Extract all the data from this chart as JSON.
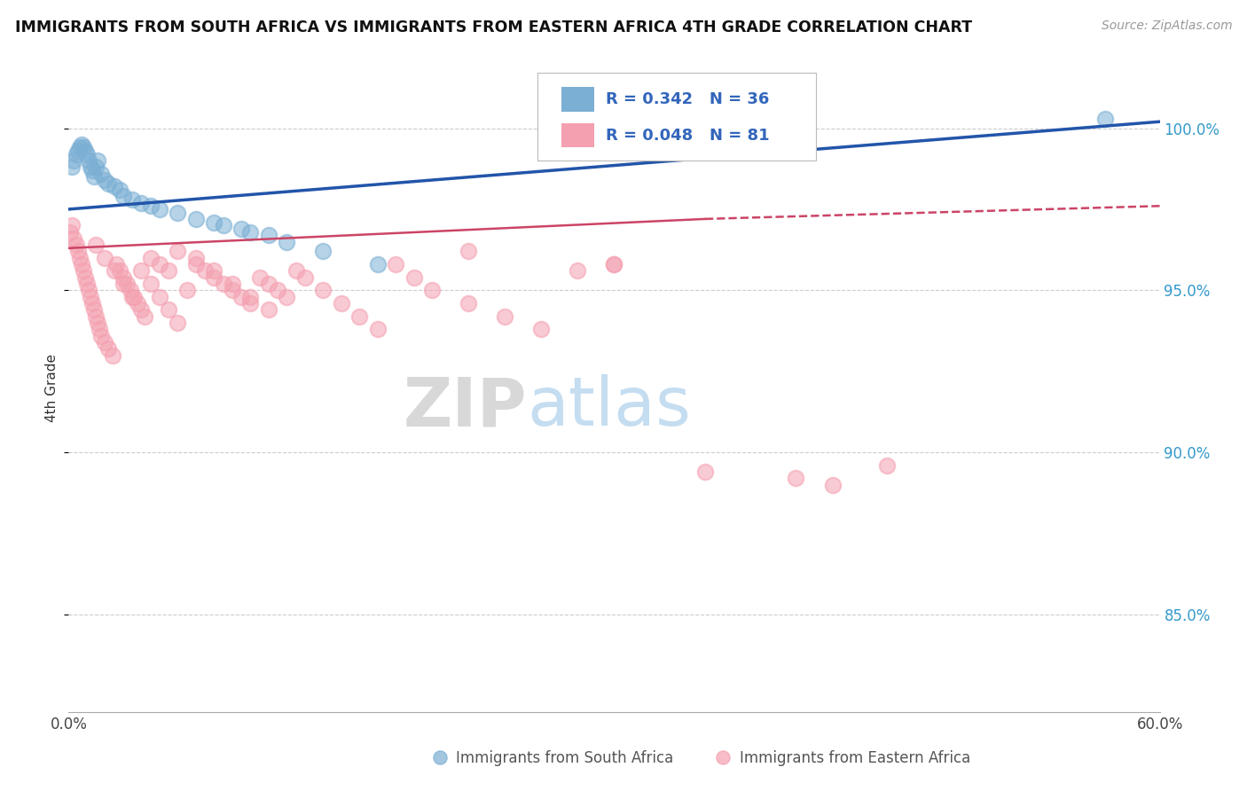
{
  "title": "IMMIGRANTS FROM SOUTH AFRICA VS IMMIGRANTS FROM EASTERN AFRICA 4TH GRADE CORRELATION CHART",
  "source": "Source: ZipAtlas.com",
  "ylabel": "4th Grade",
  "xlim": [
    0.0,
    60.0
  ],
  "ylim": [
    82.0,
    102.0
  ],
  "yticks_right": [
    85.0,
    90.0,
    95.0,
    100.0
  ],
  "ytick_labels_right": [
    "85.0%",
    "90.0%",
    "95.0%",
    "100.0%"
  ],
  "grid_color": "#cccccc",
  "background_color": "#ffffff",
  "blue_color": "#7bafd4",
  "pink_color": "#f4a0b0",
  "blue_line_color": "#2255aa",
  "pink_line_color": "#cc4466",
  "blue_R": 0.342,
  "blue_N": 36,
  "pink_R": 0.048,
  "pink_N": 81,
  "legend_R_color": "#3366bb",
  "watermark_zip": "ZIP",
  "watermark_atlas": "atlas",
  "legend_label_blue": "Immigrants from South Africa",
  "legend_label_pink": "Immigrants from Eastern Africa",
  "blue_scatter_x": [
    0.2,
    0.3,
    0.4,
    0.5,
    0.6,
    0.7,
    0.8,
    0.9,
    1.0,
    1.1,
    1.2,
    1.3,
    1.4,
    1.5,
    1.6,
    1.8,
    2.0,
    2.2,
    2.5,
    2.8,
    3.0,
    3.5,
    4.0,
    4.5,
    5.0,
    6.0,
    7.0,
    8.5,
    10.0,
    12.0,
    14.0,
    17.0,
    8.0,
    9.5,
    11.0,
    57.0
  ],
  "blue_scatter_y": [
    98.8,
    99.0,
    99.2,
    99.3,
    99.4,
    99.5,
    99.4,
    99.3,
    99.2,
    99.0,
    98.8,
    98.7,
    98.5,
    98.8,
    99.0,
    98.6,
    98.4,
    98.3,
    98.2,
    98.1,
    97.9,
    97.8,
    97.7,
    97.6,
    97.5,
    97.4,
    97.2,
    97.0,
    96.8,
    96.5,
    96.2,
    95.8,
    97.1,
    96.9,
    96.7,
    100.3
  ],
  "pink_scatter_x": [
    0.1,
    0.2,
    0.3,
    0.4,
    0.5,
    0.6,
    0.7,
    0.8,
    0.9,
    1.0,
    1.1,
    1.2,
    1.3,
    1.4,
    1.5,
    1.6,
    1.7,
    1.8,
    2.0,
    2.2,
    2.4,
    2.6,
    2.8,
    3.0,
    3.2,
    3.4,
    3.6,
    3.8,
    4.0,
    4.2,
    4.5,
    5.0,
    5.5,
    6.0,
    6.5,
    7.0,
    7.5,
    8.0,
    8.5,
    9.0,
    9.5,
    10.0,
    10.5,
    11.0,
    11.5,
    12.0,
    12.5,
    13.0,
    14.0,
    15.0,
    16.0,
    17.0,
    18.0,
    19.0,
    20.0,
    22.0,
    24.0,
    26.0,
    28.0,
    30.0,
    1.5,
    2.0,
    2.5,
    3.0,
    3.5,
    4.0,
    4.5,
    5.0,
    5.5,
    6.0,
    7.0,
    8.0,
    9.0,
    10.0,
    11.0,
    22.0,
    30.0,
    35.0,
    40.0,
    42.0,
    45.0
  ],
  "pink_scatter_y": [
    96.8,
    97.0,
    96.6,
    96.4,
    96.2,
    96.0,
    95.8,
    95.6,
    95.4,
    95.2,
    95.0,
    94.8,
    94.6,
    94.4,
    94.2,
    94.0,
    93.8,
    93.6,
    93.4,
    93.2,
    93.0,
    95.8,
    95.6,
    95.4,
    95.2,
    95.0,
    94.8,
    94.6,
    94.4,
    94.2,
    96.0,
    95.8,
    95.6,
    96.2,
    95.0,
    95.8,
    95.6,
    95.4,
    95.2,
    95.0,
    94.8,
    94.6,
    95.4,
    95.2,
    95.0,
    94.8,
    95.6,
    95.4,
    95.0,
    94.6,
    94.2,
    93.8,
    95.8,
    95.4,
    95.0,
    94.6,
    94.2,
    93.8,
    95.6,
    95.8,
    96.4,
    96.0,
    95.6,
    95.2,
    94.8,
    95.6,
    95.2,
    94.8,
    94.4,
    94.0,
    96.0,
    95.6,
    95.2,
    94.8,
    94.4,
    96.2,
    95.8,
    89.4,
    89.2,
    89.0,
    89.6
  ]
}
